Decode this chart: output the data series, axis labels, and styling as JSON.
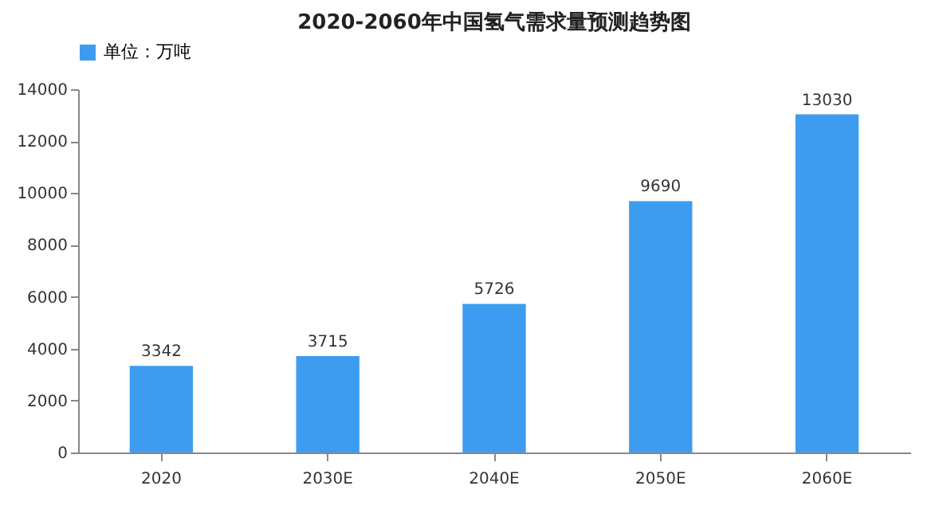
{
  "chart_data": {
    "type": "bar",
    "title": "2020-2060年中国氢气需求量预测趋势图",
    "categories": [
      "2020",
      "2030E",
      "2040E",
      "2050E",
      "2060E"
    ],
    "series": [
      {
        "name": "单位：万吨",
        "color": "#3d9cf0",
        "values": [
          3342,
          3715,
          5726,
          9690,
          13030
        ]
      }
    ],
    "ylim": [
      0,
      14000
    ],
    "yticks": [
      0,
      2000,
      4000,
      6000,
      8000,
      10000,
      12000,
      14000
    ],
    "data_labels": true,
    "legend": "top",
    "grid": false
  }
}
